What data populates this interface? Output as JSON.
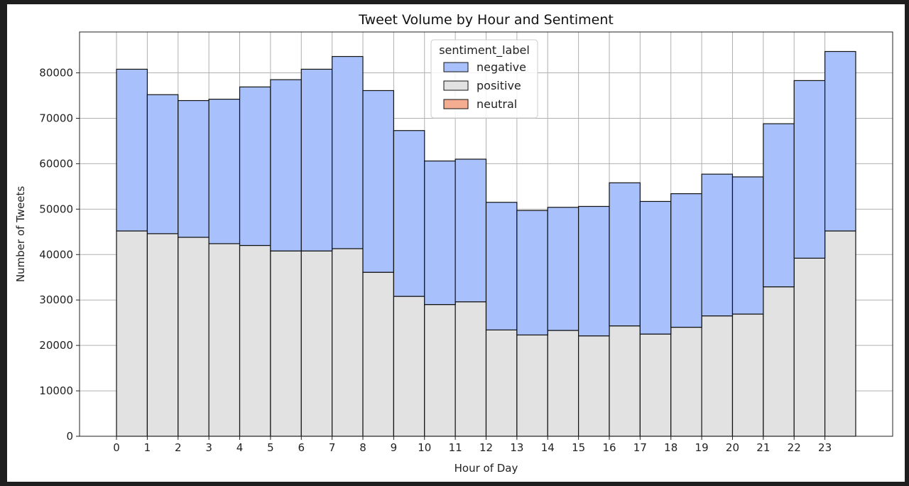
{
  "chart_data": {
    "type": "bar",
    "stacked": true,
    "title": "Tweet Volume by Hour and Sentiment",
    "xlabel": "Hour of Day",
    "ylabel": "Number of Tweets",
    "x": [
      0,
      1,
      2,
      3,
      4,
      5,
      6,
      7,
      8,
      9,
      10,
      11,
      12,
      13,
      14,
      15,
      16,
      17,
      18,
      19,
      20,
      21,
      22,
      23
    ],
    "x_ticks": [
      0,
      1,
      2,
      3,
      4,
      5,
      6,
      7,
      8,
      9,
      10,
      11,
      12,
      13,
      14,
      15,
      16,
      17,
      18,
      19,
      20,
      21,
      22,
      23
    ],
    "xlim": [
      -1.2,
      25.2
    ],
    "ylim": [
      0,
      89000
    ],
    "y_ticks": [
      0,
      10000,
      20000,
      30000,
      40000,
      50000,
      60000,
      70000,
      80000
    ],
    "grid": true,
    "legend": {
      "title": "sentiment_label",
      "placement": "top-center",
      "entries": [
        {
          "name": "negative",
          "color": "#a8c1fd"
        },
        {
          "name": "positive",
          "color": "#e2e2e2"
        },
        {
          "name": "neutral",
          "color": "#f4ad91"
        }
      ]
    },
    "series": [
      {
        "name": "positive",
        "color": "#e2e2e2",
        "values": [
          45200,
          44600,
          43800,
          42400,
          42000,
          40800,
          40800,
          41300,
          36100,
          30800,
          29000,
          29600,
          23400,
          22300,
          23300,
          22100,
          24300,
          22500,
          24000,
          26500,
          26900,
          32900,
          39200,
          45200
        ]
      },
      {
        "name": "negative",
        "color": "#a8c1fd",
        "values": [
          35600,
          30600,
          30100,
          31800,
          34900,
          37700,
          40000,
          42300,
          40000,
          36500,
          31600,
          31400,
          28100,
          27400,
          27100,
          28500,
          31500,
          29200,
          29400,
          31200,
          30200,
          35900,
          39100,
          39500
        ]
      },
      {
        "name": "neutral",
        "color": "#f4ad91",
        "values": [
          0,
          0,
          0,
          0,
          0,
          0,
          0,
          0,
          0,
          0,
          0,
          0,
          0,
          0,
          0,
          0,
          0,
          0,
          0,
          0,
          0,
          0,
          0,
          0
        ]
      }
    ]
  }
}
